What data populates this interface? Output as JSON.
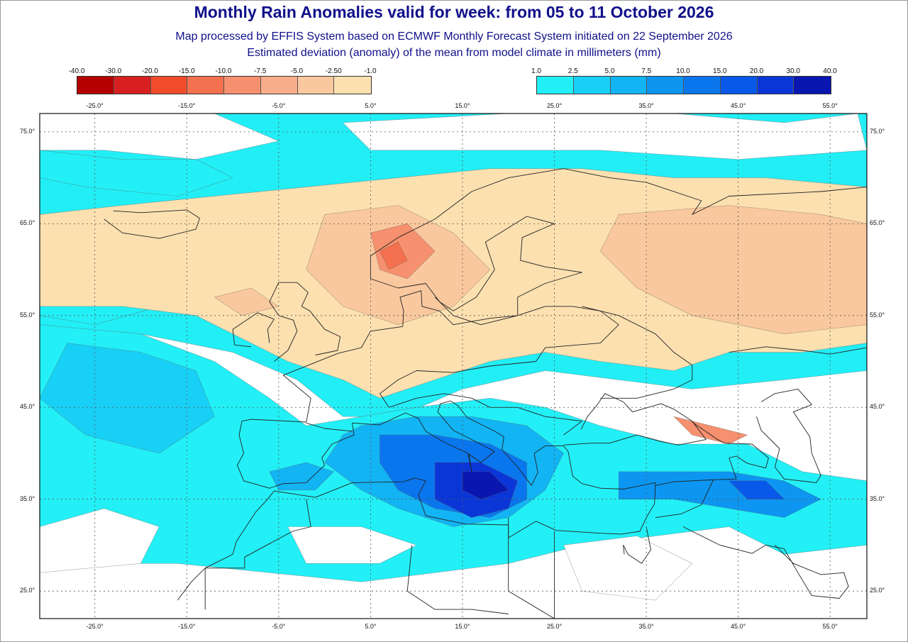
{
  "header": {
    "title": "Monthly Rain Anomalies valid for week: from 05 to 11 October 2026",
    "subtitle1": "Map processed by EFFIS System based on ECMWF Monthly Forecast System initiated on 22 September 2026",
    "subtitle2": "Estimated deviation (anomaly) of the mean from model climate in millimeters (mm)"
  },
  "legend": {
    "negative": {
      "labels": [
        "-40.0",
        "-30.0",
        "-20.0",
        "-15.0",
        "-10.0",
        "-7.5",
        "-5.0",
        "-2.50",
        "-1.0"
      ],
      "colors": [
        "#b40000",
        "#d82020",
        "#f04c2c",
        "#f4704e",
        "#f6906e",
        "#f8ae8a",
        "#fac89e",
        "#fce0b0"
      ]
    },
    "positive": {
      "labels": [
        "1.0",
        "2.5",
        "5.0",
        "7.5",
        "10.0",
        "15.0",
        "20.0",
        "30.0",
        "40.0"
      ],
      "colors": [
        "#22f0f6",
        "#18d0f6",
        "#12b4f4",
        "#0c96f2",
        "#0a76ee",
        "#0858ea",
        "#0a36d8",
        "#0a16b0"
      ]
    }
  },
  "axes": {
    "lon_top": [
      "-25.0°",
      "-15.0°",
      "-5.0°",
      "5.0°",
      "15.0°",
      "25.0°",
      "35.0°",
      "45.0°",
      "55.0°"
    ],
    "lon_bottom": [
      "-25.0°",
      "-15.0°",
      "-5.0°",
      "5.0°",
      "15.0°",
      "25.0°",
      "35.0°",
      "45.0°",
      "55.0°"
    ],
    "lat_left": [
      "75.0°",
      "65.0°",
      "55.0°",
      "45.0°",
      "35.0°",
      "25.0°"
    ],
    "lat_right": [
      "75.0°",
      "65.0°",
      "55.0°",
      "45.0°",
      "35.0°",
      "25.0°"
    ]
  },
  "map": {
    "region": "Europe, North Africa and Middle East",
    "lon_range": [
      -31,
      59
    ],
    "lat_range": [
      22,
      77
    ],
    "colors": {
      "sea_background": "#22eef6",
      "no_anomaly": "#ffffff",
      "border_lines": "#222222",
      "grid_lines": "#555555"
    },
    "anomaly_regions": [
      {
        "name": "Northern Atlantic / Greenland Sea",
        "class": "wet",
        "level": "1.0 to 2.5"
      },
      {
        "name": "Scandinavia / Norway coast",
        "class": "dry",
        "level": "-15.0 to -10.0"
      },
      {
        "name": "Northern and Central Europe",
        "class": "dry",
        "level": "-5.0 to -1.0"
      },
      {
        "name": "Russia",
        "class": "dry",
        "level": "-7.5 to -1.0"
      },
      {
        "name": "Central Mediterranean",
        "class": "wet",
        "level": "20.0 to 40.0"
      },
      {
        "name": "Southern Europe / Balkans",
        "class": "wet",
        "level": "2.5 to 10.0"
      },
      {
        "name": "North Atlantic / Iberia",
        "class": "wet",
        "level": "1.0 to 5.0"
      },
      {
        "name": "Caucasus",
        "class": "dry",
        "level": "-10.0 to -2.50"
      },
      {
        "name": "Middle East",
        "class": "wet",
        "level": "1.0 to 10.0"
      },
      {
        "name": "North Africa interior",
        "class": "wet",
        "level": "1.0 to 5.0"
      }
    ]
  }
}
